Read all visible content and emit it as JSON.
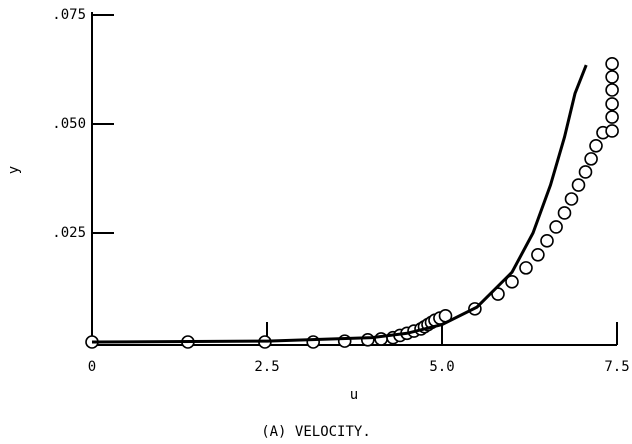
{
  "chart_data": {
    "type": "scatter",
    "caption": "(A) VELOCITY.",
    "xlabel": "u",
    "ylabel": "y",
    "xlim": [
      0,
      7.5
    ],
    "ylim": [
      0,
      0.075
    ],
    "xticks": [
      0,
      2.5,
      {
        "value": 5,
        "label": "5.0"
      },
      {
        "value": 7.5,
        "label": "7.5"
      }
    ],
    "yticks": [
      {
        "value": 0.025,
        "label": ".025"
      },
      {
        "value": 0.05,
        "label": ".050"
      },
      {
        "value": 0.075,
        "label": ".075"
      }
    ],
    "color": "#000000",
    "series": [
      {
        "style": "circle",
        "x": [
          0,
          1.37,
          2.47,
          3.16,
          3.61,
          3.94,
          4.13,
          4.3,
          4.4,
          4.5,
          4.6,
          4.7,
          4.75,
          4.8,
          4.85,
          4.9,
          4.97,
          5.05,
          5.47,
          5.8,
          6.0,
          6.2,
          6.37,
          6.5,
          6.63,
          6.75,
          6.85,
          6.95,
          7.05,
          7.13,
          7.2,
          7.3,
          7.43,
          7.43,
          7.43,
          7.43,
          7.43,
          7.43
        ],
        "values": [
          0,
          0,
          0,
          0,
          0.0002,
          0.0005,
          0.0007,
          0.001,
          0.0015,
          0.002,
          0.0025,
          0.003,
          0.0035,
          0.004,
          0.0045,
          0.005,
          0.0055,
          0.006,
          0.0076,
          0.011,
          0.0138,
          0.017,
          0.02,
          0.0232,
          0.0264,
          0.0296,
          0.0328,
          0.036,
          0.039,
          0.042,
          0.045,
          0.048,
          0.0484,
          0.0516,
          0.0546,
          0.0578,
          0.0608,
          0.0638
        ]
      },
      {
        "style": "line",
        "x": [
          0,
          2.5,
          4,
          4.5,
          5,
          5.5,
          6,
          6.3,
          6.55,
          6.75,
          6.9,
          7.06
        ],
        "values": [
          0,
          0.0002,
          0.001,
          0.002,
          0.004,
          0.008,
          0.016,
          0.025,
          0.036,
          0.047,
          0.057,
          0.0635
        ]
      }
    ]
  }
}
